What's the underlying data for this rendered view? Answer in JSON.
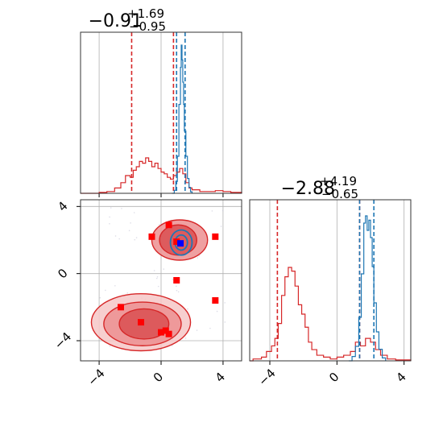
{
  "colors": {
    "red": "#d62728",
    "blue": "#1f77b4",
    "marker_red": "#ff0000",
    "marker_blue": "#0000ff"
  },
  "chart_data": [
    {
      "type": "histogram",
      "panel": "marginal-x",
      "title": {
        "value": "−0.91",
        "sup": "+1.69",
        "sub": "−0.95"
      },
      "xlim": [
        -5.2,
        5.2
      ],
      "grid": true,
      "series": [
        {
          "color": "#d62728",
          "bins": [
            [
              -5.2,
              0.0
            ],
            [
              -4.0,
              0.005
            ],
            [
              -3.5,
              0.01
            ],
            [
              -3.0,
              0.03
            ],
            [
              -2.6,
              0.06
            ],
            [
              -2.3,
              0.1
            ],
            [
              -2.0,
              0.09
            ],
            [
              -1.8,
              0.13
            ],
            [
              -1.6,
              0.15
            ],
            [
              -1.4,
              0.18
            ],
            [
              -1.2,
              0.17
            ],
            [
              -1.0,
              0.2
            ],
            [
              -0.8,
              0.18
            ],
            [
              -0.6,
              0.15
            ],
            [
              -0.4,
              0.17
            ],
            [
              -0.2,
              0.14
            ],
            [
              0.0,
              0.12
            ],
            [
              0.2,
              0.11
            ],
            [
              0.4,
              0.09
            ],
            [
              0.6,
              0.08
            ],
            [
              0.8,
              0.1
            ],
            [
              1.0,
              0.12
            ],
            [
              1.2,
              0.14
            ],
            [
              1.4,
              0.11
            ],
            [
              1.6,
              0.06
            ],
            [
              1.8,
              0.03
            ],
            [
              2.0,
              0.02
            ],
            [
              2.5,
              0.01
            ],
            [
              3.0,
              0.01
            ],
            [
              3.5,
              0.015
            ],
            [
              4.0,
              0.01
            ],
            [
              4.5,
              0.005
            ],
            [
              5.2,
              0.0
            ]
          ],
          "quantile_lines": [
            -1.9,
            0.8
          ]
        },
        {
          "color": "#1f77b4",
          "bins": [
            [
              0.7,
              0.0
            ],
            [
              0.85,
              0.02
            ],
            [
              0.95,
              0.08
            ],
            [
              1.05,
              0.25
            ],
            [
              1.15,
              0.6
            ],
            [
              1.25,
              0.85
            ],
            [
              1.3,
              1.0
            ],
            [
              1.35,
              0.9
            ],
            [
              1.4,
              0.75
            ],
            [
              1.45,
              0.6
            ],
            [
              1.5,
              0.42
            ],
            [
              1.6,
              0.25
            ],
            [
              1.7,
              0.1
            ],
            [
              1.8,
              0.04
            ],
            [
              1.9,
              0.01
            ],
            [
              2.0,
              0.0
            ]
          ],
          "quantile_lines": [
            1.0,
            1.55
          ]
        }
      ],
      "xticks": [
        -4,
        0,
        4
      ]
    },
    {
      "type": "histogram",
      "panel": "marginal-y",
      "title": {
        "value": "−2.88",
        "sup": "+4.19",
        "sub": "−0.65"
      },
      "xlim": [
        -5.2,
        4.4
      ],
      "grid": true,
      "xticks": [
        -4,
        0,
        4
      ],
      "xtick_labels": [
        "−4",
        "0",
        "4"
      ],
      "series": [
        {
          "color": "#d62728",
          "bins": [
            [
              -5.2,
              0.0
            ],
            [
              -5.0,
              0.01
            ],
            [
              -4.5,
              0.02
            ],
            [
              -4.2,
              0.05
            ],
            [
              -3.9,
              0.08
            ],
            [
              -3.7,
              0.12
            ],
            [
              -3.5,
              0.2
            ],
            [
              -3.3,
              0.35
            ],
            [
              -3.1,
              0.45
            ],
            [
              -2.9,
              0.5
            ],
            [
              -2.7,
              0.48
            ],
            [
              -2.5,
              0.4
            ],
            [
              -2.3,
              0.3
            ],
            [
              -2.1,
              0.25
            ],
            [
              -1.9,
              0.18
            ],
            [
              -1.7,
              0.1
            ],
            [
              -1.5,
              0.06
            ],
            [
              -1.2,
              0.03
            ],
            [
              -0.8,
              0.02
            ],
            [
              -0.4,
              0.01
            ],
            [
              0.0,
              0.02
            ],
            [
              0.4,
              0.03
            ],
            [
              0.8,
              0.05
            ],
            [
              1.1,
              0.1
            ],
            [
              1.4,
              0.08
            ],
            [
              1.7,
              0.12
            ],
            [
              2.0,
              0.1
            ],
            [
              2.3,
              0.06
            ],
            [
              2.6,
              0.03
            ],
            [
              3.0,
              0.01
            ],
            [
              3.5,
              0.005
            ],
            [
              4.4,
              0.0
            ]
          ],
          "quantile_lines": [
            -3.55,
            1.35
          ]
        },
        {
          "color": "#1f77b4",
          "bins": [
            [
              0.7,
              0.0
            ],
            [
              0.9,
              0.03
            ],
            [
              1.1,
              0.1
            ],
            [
              1.3,
              0.3
            ],
            [
              1.45,
              0.6
            ],
            [
              1.6,
              0.95
            ],
            [
              1.7,
              1.0
            ],
            [
              1.8,
              0.9
            ],
            [
              1.9,
              0.97
            ],
            [
              2.0,
              0.85
            ],
            [
              2.1,
              0.65
            ],
            [
              2.2,
              0.4
            ],
            [
              2.35,
              0.2
            ],
            [
              2.5,
              0.08
            ],
            [
              2.7,
              0.02
            ],
            [
              2.9,
              0.0
            ]
          ],
          "quantile_lines": [
            1.35,
            2.2
          ]
        }
      ]
    },
    {
      "type": "scatter",
      "panel": "joint",
      "xlim": [
        -5.2,
        5.2
      ],
      "ylim": [
        -5.2,
        4.4
      ],
      "grid": true,
      "xticks": [
        -4,
        0,
        4
      ],
      "yticks": [
        -4,
        0,
        4
      ],
      "xtick_labels": [
        "−4",
        "0",
        "4"
      ],
      "ytick_labels": [
        "−4",
        "0",
        "4"
      ],
      "series": [
        {
          "color": "#ff0000",
          "marker": "square",
          "points": [
            [
              -0.6,
              2.2
            ],
            [
              0.5,
              2.9
            ],
            [
              3.5,
              2.2
            ],
            [
              1.0,
              1.9
            ],
            [
              1.0,
              -0.4
            ],
            [
              3.5,
              -1.6
            ],
            [
              -2.6,
              -2.0
            ],
            [
              -1.3,
              -2.9
            ],
            [
              0.0,
              -3.5
            ],
            [
              0.3,
              -3.4
            ],
            [
              0.5,
              -3.6
            ]
          ]
        },
        {
          "color": "#0000ff",
          "marker": "square",
          "points": [
            [
              1.25,
              1.8
            ]
          ]
        }
      ],
      "contours": [
        {
          "color": "#d62728",
          "levels": [
            {
              "cx": 1.2,
              "cy": 2.0,
              "rx": 1.8,
              "ry": 1.2
            },
            {
              "cx": 1.1,
              "cy": 2.0,
              "rx": 1.2,
              "ry": 0.9
            },
            {
              "cx": -1.3,
              "cy": -2.9,
              "rx": 3.2,
              "ry": 1.7
            },
            {
              "cx": -1.2,
              "cy": -3.0,
              "rx": 2.5,
              "ry": 1.3
            },
            {
              "cx": -1.1,
              "cy": -3.0,
              "rx": 1.6,
              "ry": 0.9
            }
          ]
        },
        {
          "color": "#1f77b4",
          "levels": [
            {
              "cx": 1.3,
              "cy": 1.85,
              "rx": 0.7,
              "ry": 0.75
            },
            {
              "cx": 1.3,
              "cy": 1.85,
              "rx": 0.4,
              "ry": 0.45
            }
          ]
        }
      ]
    }
  ]
}
